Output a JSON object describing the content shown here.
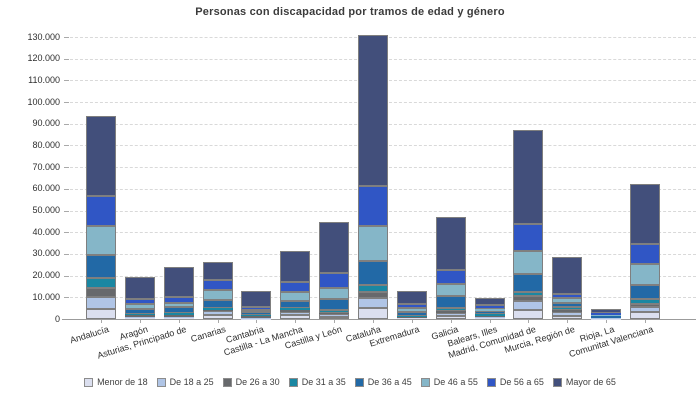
{
  "title": "Personas con discapacidad por tramos de edad y género",
  "chart_data": {
    "type": "bar",
    "stacked": true,
    "title": "Personas con discapacidad por tramos de edad y género",
    "xlabel": "",
    "ylabel": "",
    "ylim": [
      0,
      130000
    ],
    "ytick_step": 10000,
    "ytick_format": "thousands-dot",
    "grid": "horizontal-dashed",
    "legend_position": "bottom",
    "categories": [
      "Andalucía",
      "Aragón",
      "Asturias, Principado de",
      "Canarias",
      "Cantabria",
      "Castilla - La Mancha",
      "Castilla y León",
      "Cataluña",
      "Extremadura",
      "Galicia",
      "Balears, Illes",
      "Madrid, Comunidad de",
      "Murcia, Región de",
      "Rioja, La",
      "Comunitat Valenciana"
    ],
    "series": [
      {
        "name": "Menor de 18",
        "color": "#dbdfef",
        "values": [
          4600,
          250,
          300,
          2000,
          150,
          2000,
          1100,
          5300,
          300,
          1200,
          400,
          4300,
          1500,
          150,
          3100
        ]
      },
      {
        "name": "De 18 a 25",
        "color": "#b0c5e6",
        "values": [
          5700,
          500,
          800,
          1500,
          450,
          1200,
          1200,
          4200,
          400,
          1600,
          500,
          4000,
          1900,
          200,
          2400
        ]
      },
      {
        "name": "De 26 a 30",
        "color": "#67696c",
        "values": [
          4000,
          950,
          900,
          800,
          600,
          900,
          700,
          2800,
          300,
          1000,
          600,
          2100,
          900,
          150,
          1300
        ]
      },
      {
        "name": "De 31 a 35",
        "color": "#1a87a2",
        "values": [
          4400,
          750,
          900,
          1000,
          650,
          1000,
          1300,
          3400,
          400,
          1300,
          900,
          1900,
          1200,
          200,
          2600
        ]
      },
      {
        "name": "De 36 a 45",
        "color": "#2269a6",
        "values": [
          10900,
          2300,
          2500,
          3500,
          1200,
          3000,
          4900,
          11200,
          1700,
          5300,
          1400,
          8500,
          1900,
          550,
          6300
        ]
      },
      {
        "name": "De 46 a 55",
        "color": "#85b6c8",
        "values": [
          13300,
          2150,
          2100,
          4600,
          1250,
          4200,
          5100,
          16100,
          1900,
          5900,
          900,
          10400,
          2100,
          500,
          9700
        ]
      },
      {
        "name": "De 56 a 65",
        "color": "#3056c5",
        "values": [
          13800,
          2500,
          2500,
          4600,
          1400,
          5000,
          6900,
          18400,
          2000,
          6500,
          1800,
          12800,
          1900,
          950,
          9200
        ]
      },
      {
        "name": "Mayor de 65",
        "color": "#424f7b",
        "values": [
          36800,
          10200,
          13800,
          8500,
          7300,
          13900,
          23600,
          69500,
          6000,
          24100,
          3300,
          43100,
          17000,
          1900,
          27700
        ]
      }
    ]
  }
}
